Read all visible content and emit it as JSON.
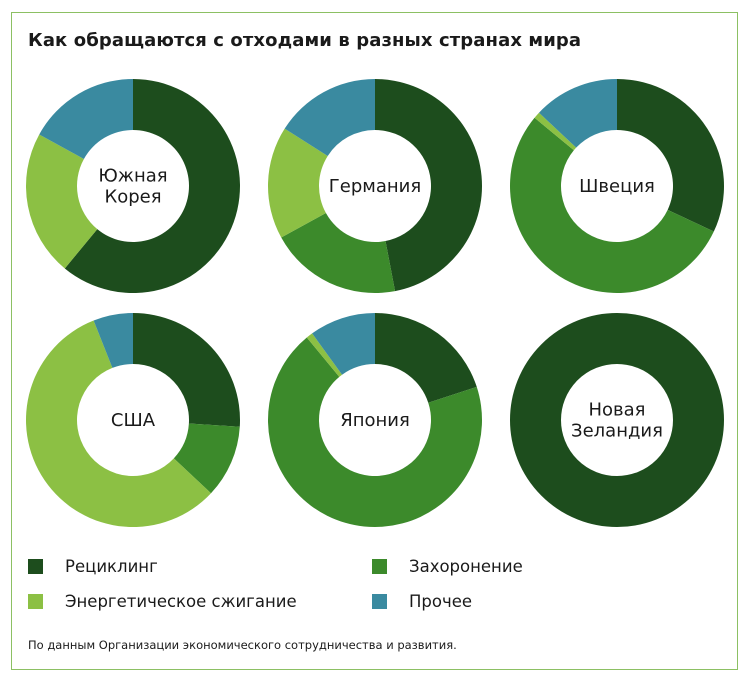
{
  "title": "Как обращаются с отходами в разных странах мира",
  "source": "По данным Организации экономического сотрудничества и развития.",
  "colors": {
    "recycling": "#1d4d1d",
    "landfill": "#3c8a2b",
    "energy": "#8cc044",
    "other": "#3a8aa0"
  },
  "legend": {
    "recycling": "Рециклинг",
    "landfill": "Захоронение",
    "energy": "Энергетическое сжигание",
    "other": "Прочее"
  },
  "chart_data": {
    "type": "pie",
    "categories": [
      "Рециклинг",
      "Захоронение",
      "Энергетическое сжигание",
      "Прочее"
    ],
    "series": [
      {
        "name": "Южная Корея",
        "label_lines": [
          "Южная",
          "Корея"
        ],
        "values": [
          61,
          0,
          22,
          17
        ]
      },
      {
        "name": "Германия",
        "label_lines": [
          "Германия"
        ],
        "values": [
          47,
          20,
          17,
          16
        ]
      },
      {
        "name": "Швеция",
        "label_lines": [
          "Швеция"
        ],
        "values": [
          32,
          54,
          1,
          13
        ]
      },
      {
        "name": "США",
        "label_lines": [
          "США"
        ],
        "values": [
          26,
          11,
          57,
          6
        ]
      },
      {
        "name": "Япония",
        "label_lines": [
          "Япония"
        ],
        "values": [
          20,
          69,
          1,
          10
        ]
      },
      {
        "name": "Новая Зеландия",
        "label_lines": [
          "Новая",
          "Зеландия"
        ],
        "values": [
          100,
          0,
          0,
          0
        ]
      }
    ]
  }
}
